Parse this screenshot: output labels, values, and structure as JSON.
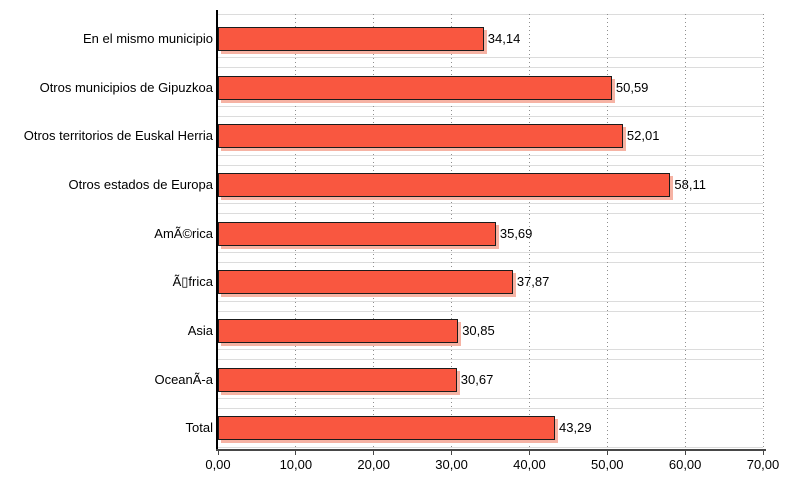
{
  "chart_data": {
    "type": "bar",
    "orientation": "horizontal",
    "title": "",
    "xlabel": "",
    "ylabel": "",
    "xlim": [
      0,
      70
    ],
    "grid": true,
    "legend": false,
    "categories": [
      "En el mismo municipio",
      "Otros municipios de Gipuzkoa",
      "Otros territorios de Euskal Herria",
      "Otros estados de Europa",
      "AmÃ©rica",
      "Ã▯frica",
      "Asia",
      "OceanÃ-a",
      "Total"
    ],
    "values": [
      34.14,
      50.59,
      52.01,
      58.11,
      35.69,
      37.87,
      30.85,
      30.67,
      43.29
    ],
    "value_labels": [
      "34,14",
      "50,59",
      "52,01",
      "58,11",
      "35,69",
      "37,87",
      "30,85",
      "30,67",
      "43,29"
    ],
    "x_tick_labels": [
      "0,00",
      "10,00",
      "20,00",
      "30,00",
      "40,00",
      "50,00",
      "60,00",
      "70,00"
    ],
    "x_tick_values": [
      0,
      10,
      20,
      30,
      40,
      50,
      60,
      70
    ],
    "colors": {
      "bar_fill": "#F95740",
      "bar_border": "#1B1B1B",
      "bar_shadow": "#F6B3A4",
      "grid_vertical": "#8F8F8F",
      "grid_horizontal": "#DCDCDC",
      "y_axis": "#000000",
      "x_axis": "#474747",
      "text": "#000000",
      "background": "#FFFFFF"
    }
  }
}
